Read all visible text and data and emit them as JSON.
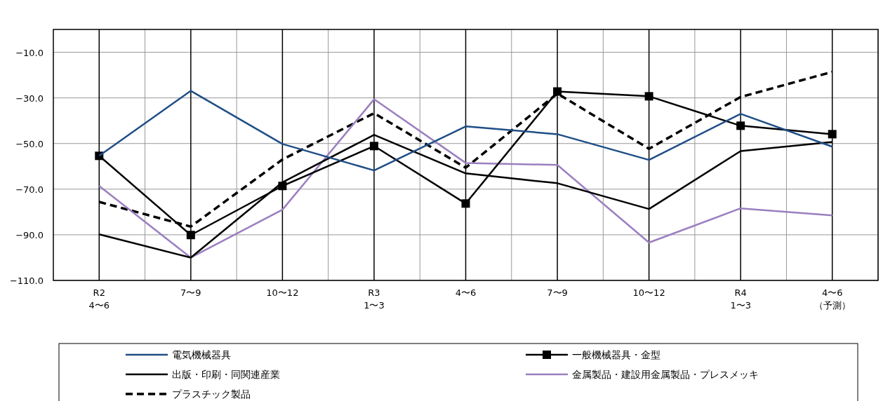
{
  "chart_data": {
    "type": "line",
    "categories": [
      "R2\n4〜6",
      "7〜9",
      "10〜12",
      "R3\n1〜3",
      "4〜6",
      "7〜9",
      "10〜12",
      "R4\n1〜3",
      "4〜6\n（予測）"
    ],
    "series": [
      {
        "name": "電気機械器具",
        "color": "#1f4e86",
        "values": [
          -55.4,
          -26.9,
          -50.2,
          -61.8,
          -42.5,
          -45.9,
          -57.2,
          -37.0,
          -51.4
        ]
      },
      {
        "name": "一般機械器具・金型",
        "color": "#000000",
        "marker": "square",
        "values": [
          -55.4,
          -90.1,
          -68.6,
          -51.1,
          -76.3,
          -27.2,
          -29.3,
          -42.2,
          -45.9
        ]
      },
      {
        "name": "出版・印刷・同関連産業",
        "color": "#000000",
        "values": [
          -89.8,
          -100.0,
          -67.0,
          -46.2,
          -63.1,
          -67.4,
          -78.7,
          -53.3,
          -49.3
        ]
      },
      {
        "name": "金属製品・建設用金属製品・プレスメッキ",
        "color": "#9b7fc0",
        "values": [
          -68.6,
          -100.0,
          -79.0,
          -30.6,
          -58.5,
          -59.4,
          -93.4,
          -78.4,
          -81.5
        ]
      },
      {
        "name": "プラスチック製品",
        "color": "#000000",
        "line_style": "dashed",
        "values": [
          -75.6,
          -86.4,
          -57.0,
          -36.7,
          -60.6,
          -28.1,
          -52.3,
          -29.6,
          -18.6
        ]
      }
    ],
    "ylim": [
      -110,
      0
    ],
    "yticks": [
      {
        "value": -110,
        "label": "−110.0"
      },
      {
        "value": -90,
        "label": "−90.0"
      },
      {
        "value": -70,
        "label": "−70.0"
      },
      {
        "value": -50,
        "label": "−50.0"
      },
      {
        "value": -30,
        "label": "−30.0"
      },
      {
        "value": -10,
        "label": "−10.0"
      }
    ],
    "grid": true,
    "legend": "bottom"
  }
}
